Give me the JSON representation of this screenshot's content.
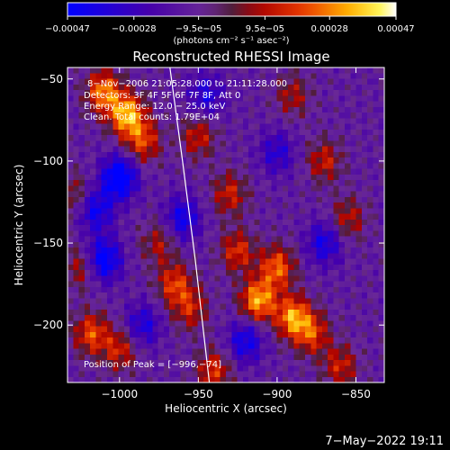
{
  "chart_data": {
    "type": "heatmap",
    "title": "Reconstructed RHESSI Image",
    "xlabel": "Heliocentric X (arcsec)",
    "ylabel": "Heliocentric Y (arcsec)",
    "xlim": [
      -1033,
      -832
    ],
    "ylim": [
      -235,
      -43
    ],
    "x_ticks": [
      -1000,
      -950,
      -900,
      -850
    ],
    "y_ticks": [
      -50,
      -100,
      -150,
      -200
    ],
    "x_tick_labels": [
      "−1000",
      "−950",
      "−900",
      "−850"
    ],
    "y_tick_labels": [
      "−50",
      "−100",
      "−150",
      "−200"
    ],
    "colorbar": {
      "range": [
        -0.00047,
        0.00047
      ],
      "ticks": [
        -0.00047,
        -0.00028,
        -9.5e-05,
        9.5e-05,
        0.00028,
        0.00047
      ],
      "tick_labels": [
        "−0.00047",
        "−0.00028",
        "−9.5e−05",
        "9.5e−05",
        "0.00028",
        "0.00047"
      ],
      "unit_label": "(photons cm⁻² s⁻¹ asec⁻²)"
    },
    "annotations": [
      "8−Nov−2006 21:05:28.000 to 21:11:28.000",
      "Detectors: 3F 4F 5F 6F 7F 8F, Att 0",
      "Energy Range: 12.0 − 25.0 keV",
      "Clean. Total counts: 1.79E+04",
      "Position of Peak = [−996,−74]"
    ],
    "peak": {
      "x": -996,
      "y": -74
    },
    "hot_spots": [
      {
        "x": -995,
        "y": -72,
        "v": 0.00047
      },
      {
        "x": -1010,
        "y": -58,
        "v": 0.0004
      },
      {
        "x": -985,
        "y": -88,
        "v": 0.0003
      },
      {
        "x": -912,
        "y": -185,
        "v": 0.00045
      },
      {
        "x": -890,
        "y": -195,
        "v": 0.00042
      },
      {
        "x": -900,
        "y": -165,
        "v": 0.00036
      },
      {
        "x": -925,
        "y": -155,
        "v": 0.00028
      },
      {
        "x": -930,
        "y": -120,
        "v": 0.00025
      },
      {
        "x": -878,
        "y": -205,
        "v": 0.0003
      },
      {
        "x": -965,
        "y": -175,
        "v": 0.0003
      },
      {
        "x": -955,
        "y": -190,
        "v": 0.00024
      },
      {
        "x": -1018,
        "y": -205,
        "v": 0.00032
      },
      {
        "x": -1000,
        "y": -215,
        "v": 0.00026
      },
      {
        "x": -870,
        "y": -100,
        "v": 0.00024
      },
      {
        "x": -855,
        "y": -135,
        "v": 0.00022
      },
      {
        "x": -950,
        "y": -85,
        "v": 0.00024
      },
      {
        "x": -940,
        "y": -228,
        "v": 0.00028
      },
      {
        "x": -860,
        "y": -225,
        "v": 0.00025
      },
      {
        "x": -1025,
        "y": -165,
        "v": 0.0002
      },
      {
        "x": -975,
        "y": -150,
        "v": 0.0002
      },
      {
        "x": -890,
        "y": -60,
        "v": 0.0002
      },
      {
        "x": -1030,
        "y": -120,
        "v": 0.00018
      }
    ],
    "cold_spots": [
      {
        "x": -1000,
        "y": -110,
        "v": -0.00047
      },
      {
        "x": -1010,
        "y": -160,
        "v": -0.0004
      },
      {
        "x": -1015,
        "y": -130,
        "v": -0.0003
      },
      {
        "x": -960,
        "y": -135,
        "v": -0.0003
      },
      {
        "x": -920,
        "y": -210,
        "v": -0.0003
      },
      {
        "x": -945,
        "y": -60,
        "v": -0.00025
      },
      {
        "x": -870,
        "y": -150,
        "v": -0.00028
      },
      {
        "x": -900,
        "y": -95,
        "v": -0.00022
      },
      {
        "x": -985,
        "y": -200,
        "v": -0.00025
      }
    ],
    "limb_line": [
      {
        "x": -968,
        "y": -43
      },
      {
        "x": -960,
        "y": -100
      },
      {
        "x": -952,
        "y": -160
      },
      {
        "x": -943,
        "y": -235
      }
    ]
  },
  "timestamp": "7−May−2022 19:11"
}
